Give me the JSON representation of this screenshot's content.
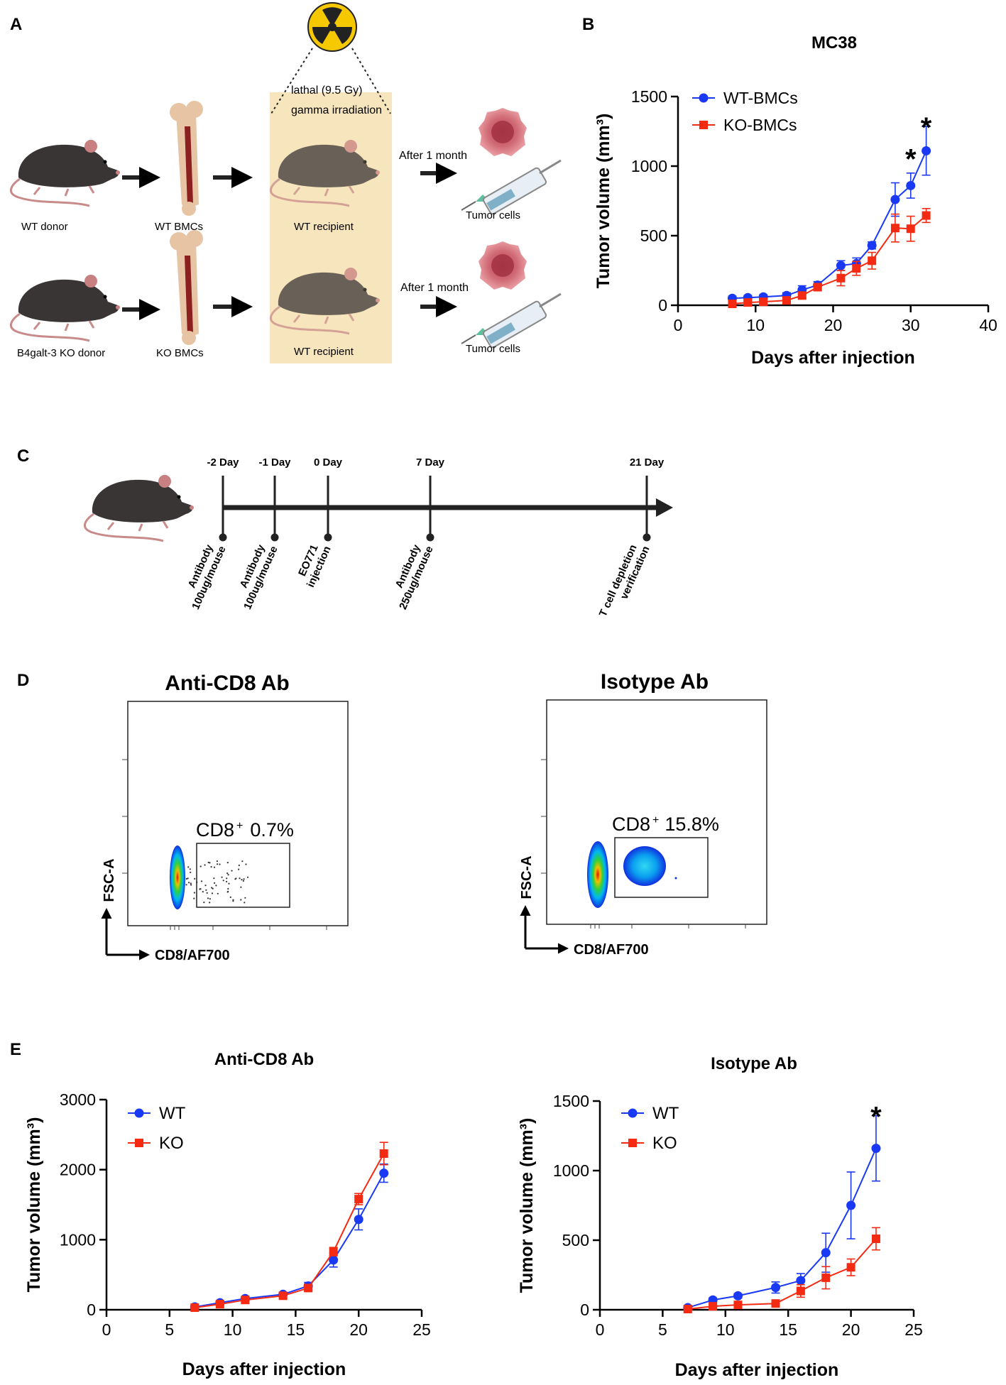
{
  "panel_labels": [
    "A",
    "B",
    "C",
    "D",
    "E"
  ],
  "panelA": {
    "irradiation": {
      "line1": "lathal (9.5 Gy)",
      "line2": "gamma irradiation"
    },
    "after_label": "After 1 month",
    "tumor_cells_label": "Tumor cells",
    "wt_row": {
      "donor": "WT donor",
      "bmc": "WT BMCs",
      "recipient": "WT recipient"
    },
    "ko_row": {
      "donor": "B4galt-3 KO donor",
      "bmc": "KO BMCs",
      "recipient": "WT recipient"
    }
  },
  "panelC": {
    "timepoints": [
      {
        "day": "-2 Day",
        "line1": "Antibody",
        "line2": "100ug/mouse"
      },
      {
        "day": "-1 Day",
        "line1": "Antibody",
        "line2": "100ug/mouse"
      },
      {
        "day": "0 Day",
        "line1": "EO771",
        "line2": "injection"
      },
      {
        "day": "7 Day",
        "line1": "Antibody",
        "line2": "250ug/mouse"
      },
      {
        "day": "21 Day",
        "line1": "T cell depletion",
        "line2": "verification"
      }
    ]
  },
  "panelD": {
    "left": {
      "title": "Anti-CD8 Ab",
      "gate": "CD8",
      "sup": "+",
      "pct": "0.7%"
    },
    "right": {
      "title": "Isotype Ab",
      "gate": "CD8",
      "sup": "+",
      "pct": "15.8%"
    },
    "ylabel": "FSC-A",
    "xlabel": "CD8/AF700"
  },
  "colors": {
    "wt": "#1a39f5",
    "ko": "#f52a12",
    "panelA_highlight": "#f7e6bd"
  },
  "chart_data": [
    {
      "id": "B",
      "type": "line",
      "title": "MC38",
      "xlabel": "Days after injection",
      "ylabel": "Tumor volume (mm³)",
      "xlim": [
        0,
        40
      ],
      "ylim": [
        0,
        1500
      ],
      "xticks": [
        0,
        10,
        20,
        30,
        40
      ],
      "yticks": [
        0,
        500,
        1000,
        1500
      ],
      "series": [
        {
          "name": "WT-BMCs",
          "marker": "circle",
          "x": [
            7,
            9,
            11,
            14,
            16,
            18,
            21,
            23,
            25,
            28,
            30,
            32
          ],
          "y": [
            50,
            55,
            60,
            70,
            110,
            145,
            285,
            300,
            430,
            760,
            860,
            1110
          ],
          "err": [
            15,
            15,
            15,
            20,
            30,
            25,
            35,
            40,
            25,
            120,
            90,
            175
          ]
        },
        {
          "name": "KO-BMCs",
          "marker": "square",
          "x": [
            7,
            9,
            11,
            14,
            16,
            18,
            21,
            23,
            25,
            28,
            30,
            32
          ],
          "y": [
            10,
            20,
            25,
            35,
            70,
            130,
            195,
            265,
            320,
            555,
            550,
            645
          ],
          "err": [
            10,
            10,
            10,
            15,
            20,
            25,
            55,
            50,
            60,
            100,
            90,
            50
          ]
        }
      ],
      "annotations": [
        {
          "text": "*",
          "x": 30,
          "y": 1085
        },
        {
          "text": "*",
          "x": 32,
          "y": 1310
        }
      ]
    },
    {
      "id": "E-left",
      "type": "line",
      "title": "Anti-CD8 Ab",
      "xlabel": "Days after injection",
      "ylabel": "Tumor volume (mm³)",
      "xlim": [
        0,
        25
      ],
      "ylim": [
        0,
        3000
      ],
      "xticks": [
        0,
        5,
        10,
        15,
        20,
        25
      ],
      "yticks": [
        0,
        1000,
        2000,
        3000
      ],
      "series": [
        {
          "name": "WT",
          "marker": "circle",
          "x": [
            7,
            9,
            11,
            14,
            16,
            18,
            20,
            22
          ],
          "y": [
            40,
            100,
            160,
            220,
            340,
            710,
            1290,
            1950
          ],
          "err": [
            10,
            20,
            20,
            30,
            50,
            100,
            150,
            130
          ]
        },
        {
          "name": "KO",
          "marker": "square",
          "x": [
            7,
            9,
            11,
            14,
            16,
            18,
            20,
            22
          ],
          "y": [
            30,
            80,
            140,
            200,
            310,
            830,
            1580,
            2230
          ],
          "err": [
            10,
            20,
            20,
            30,
            40,
            60,
            80,
            160
          ]
        }
      ],
      "annotations": []
    },
    {
      "id": "E-right",
      "type": "line",
      "title": "Isotype Ab",
      "xlabel": "Days after injection",
      "ylabel": "Tumor volume (mm³)",
      "xlim": [
        0,
        25
      ],
      "ylim": [
        0,
        1500
      ],
      "xticks": [
        0,
        5,
        10,
        15,
        20,
        25
      ],
      "yticks": [
        0,
        500,
        1000,
        1500
      ],
      "series": [
        {
          "name": "WT",
          "marker": "circle",
          "x": [
            7,
            9,
            11,
            14,
            16,
            18,
            20,
            22
          ],
          "y": [
            15,
            70,
            100,
            160,
            210,
            410,
            750,
            1160
          ],
          "err": [
            5,
            15,
            15,
            40,
            50,
            140,
            240,
            235
          ]
        },
        {
          "name": "KO",
          "marker": "square",
          "x": [
            7,
            9,
            11,
            14,
            16,
            18,
            20,
            22
          ],
          "y": [
            5,
            25,
            35,
            45,
            135,
            230,
            305,
            510
          ],
          "err": [
            5,
            10,
            10,
            15,
            45,
            80,
            60,
            80
          ]
        }
      ],
      "annotations": [
        {
          "text": "*",
          "x": 22,
          "y": 1420
        }
      ]
    }
  ]
}
